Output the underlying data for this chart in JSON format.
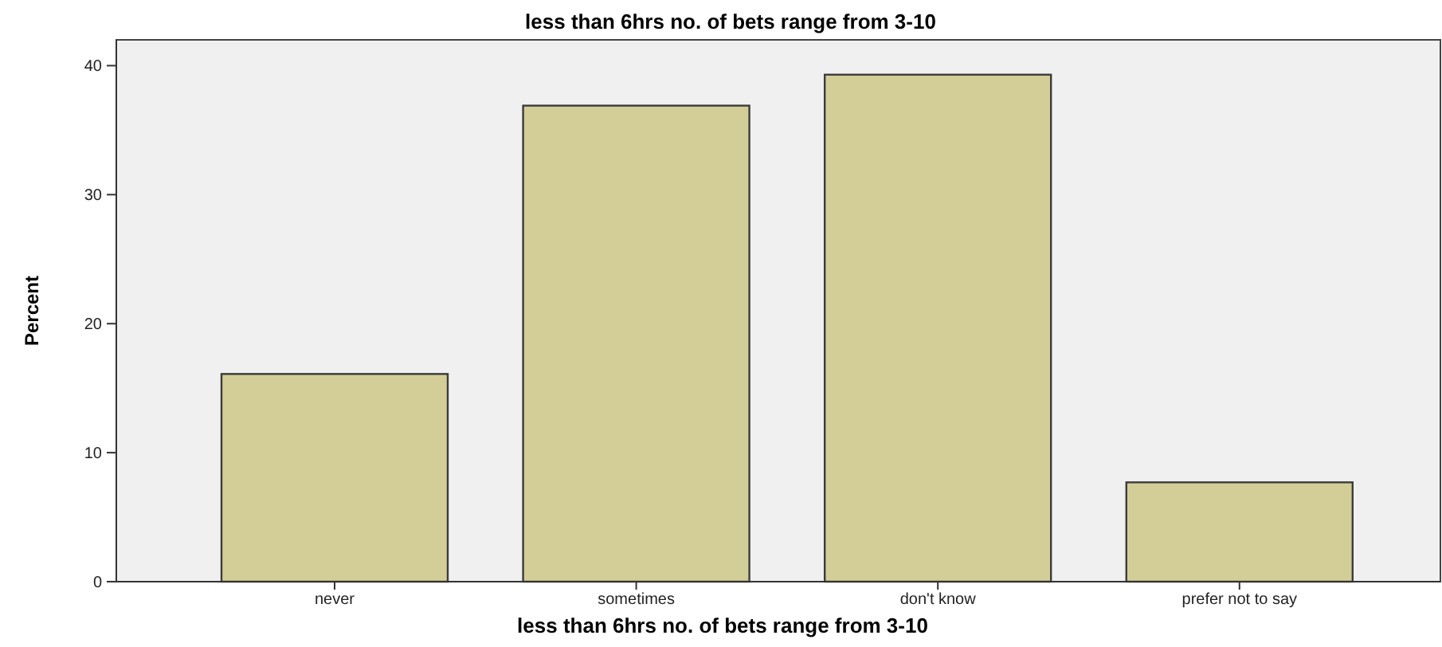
{
  "chart_data": {
    "type": "bar",
    "title": "less than 6hrs no. of bets range from 3-10",
    "xlabel": "less than 6hrs no. of bets range from 3-10",
    "ylabel": "Percent",
    "categories": [
      "never",
      "sometimes",
      "don't know",
      "prefer not to say"
    ],
    "values": [
      16.1,
      36.9,
      39.3,
      7.7
    ],
    "color": "#d3ce97",
    "ylim": [
      0,
      42
    ],
    "yticks": [
      0,
      10,
      20,
      30,
      40
    ],
    "grid": false
  }
}
